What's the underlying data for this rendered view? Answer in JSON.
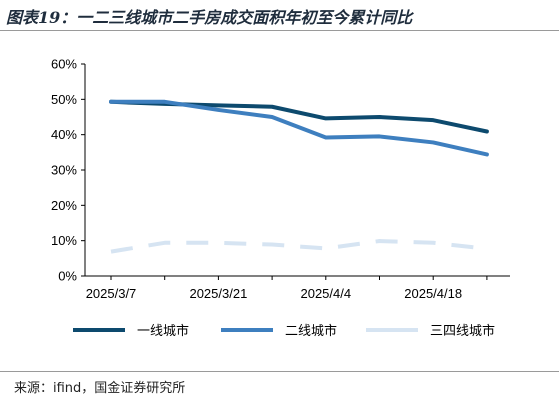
{
  "title": "图表19：一二三线城市二手房成交面积年初至今累计同比",
  "source": "来源：ifind，国金证券研究所",
  "chart_data": {
    "type": "line",
    "title": "图表19：一二三线城市二手房成交面积年初至今累计同比",
    "xlabel": "",
    "ylabel": "",
    "x_tick_labels": [
      "2025/3/7",
      "2025/3/21",
      "2025/4/4",
      "2025/4/18"
    ],
    "x": [
      "2025/3/7",
      "2025/3/14",
      "2025/3/21",
      "2025/3/28",
      "2025/4/4",
      "2025/4/11",
      "2025/4/18",
      "2025/4/25"
    ],
    "ylim": [
      0,
      60
    ],
    "y_ticks": [
      0,
      10,
      20,
      30,
      40,
      50,
      60
    ],
    "y_tick_format": "%",
    "grid": false,
    "legend_position": "bottom",
    "series": [
      {
        "name": "一线城市",
        "color": "#0d4a6e",
        "dash": "solid",
        "values": [
          49.3,
          48.7,
          48.3,
          47.9,
          44.6,
          45.0,
          44.1,
          40.9
        ]
      },
      {
        "name": "二线城市",
        "color": "#3e7fbf",
        "dash": "solid",
        "values": [
          49.3,
          49.3,
          47.0,
          45.0,
          39.2,
          39.5,
          37.8,
          34.4
        ]
      },
      {
        "name": "三四线城市",
        "color": "#d6e4f2",
        "dash": "dashed",
        "values": [
          6.9,
          9.4,
          9.4,
          8.9,
          7.8,
          9.9,
          9.4,
          7.7
        ]
      }
    ]
  }
}
